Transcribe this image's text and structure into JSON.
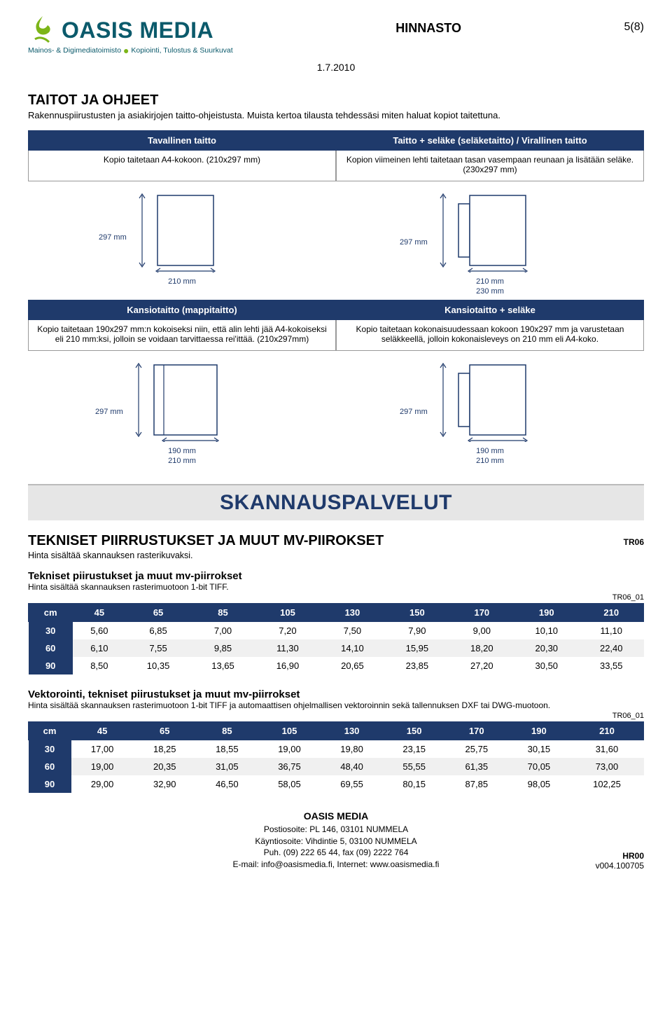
{
  "header": {
    "logo_name": "OASIS MEDIA",
    "logo_tagline": "Mainos- & Digimediatoimisto Kopiointi, Tulostus & Suurkuvat",
    "logo_name_color": "#0b5a6b",
    "logo_icon_color": "#7cb518",
    "title": "HINNASTO",
    "page": "5(8)",
    "date": "1.7.2010"
  },
  "taitot": {
    "title": "TAITOT JA OHJEET",
    "subtitle": "Rakennuspiirustusten ja asiakirjojen taitto-ohjeistusta. Muista kertoa tilausta tehdessäsi miten haluat kopiot taitettuna.",
    "row1": {
      "left": {
        "hdr": "Tavallinen taitto",
        "desc": "Kopio taitetaan A4-kokoon. (210x297 mm)",
        "v": "297 mm",
        "h1": "210 mm"
      },
      "right": {
        "hdr": "Taitto + seläke (seläketaitto) / Virallinen taitto",
        "desc": "Kopion viimeinen lehti taitetaan tasan vasempaan reunaan ja lisätään seläke. (230x297 mm)",
        "v": "297 mm",
        "h1": "210 mm",
        "h2": "230 mm"
      }
    },
    "row2": {
      "left": {
        "hdr": "Kansiotaitto (mappitaitto)",
        "desc": "Kopio taitetaan 190x297 mm:n kokoiseksi niin, että alin lehti jää A4-kokoiseksi eli 210 mm:ksi, jolloin se voidaan tarvittaessa rei'ittää. (210x297mm)",
        "v": "297 mm",
        "h1": "190 mm",
        "h2": "210 mm"
      },
      "right": {
        "hdr": "Kansiotaitto + seläke",
        "desc": "Kopio taitetaan kokonaisuudessaan kokoon 190x297 mm ja varustetaan seläkkeellä, jolloin kokonaisleveys on 210 mm eli A4-koko.",
        "v": "297 mm",
        "h1": "190 mm",
        "h2": "210 mm"
      }
    },
    "colors": {
      "navy": "#1f3a6b",
      "grey_bg": "#e6e6e6"
    }
  },
  "scan": {
    "banner": "SKANNAUSPALVELUT",
    "section": {
      "title": "TEKNISET PIIRRUSTUKSET JA MUUT MV-PIIROKSET",
      "note": "Hinta sisältää skannauksen rasterikuvaksi.",
      "code": "TR06"
    },
    "table1": {
      "title": "Tekniset piirustukset ja muut mv-piirrokset",
      "sub": "Hinta sisältää skannauksen rasterimuotoon 1-bit TIFF.",
      "code": "TR06_01",
      "cols": [
        "cm",
        "45",
        "65",
        "85",
        "105",
        "130",
        "150",
        "170",
        "190",
        "210"
      ],
      "rows": [
        [
          "30",
          "5,60",
          "6,85",
          "7,00",
          "7,20",
          "7,50",
          "7,90",
          "9,00",
          "10,10",
          "11,10"
        ],
        [
          "60",
          "6,10",
          "7,55",
          "9,85",
          "11,30",
          "14,10",
          "15,95",
          "18,20",
          "20,30",
          "22,40"
        ],
        [
          "90",
          "8,50",
          "10,35",
          "13,65",
          "16,90",
          "20,65",
          "23,85",
          "27,20",
          "30,50",
          "33,55"
        ]
      ]
    },
    "table2": {
      "title": "Vektorointi, tekniset piirustukset ja muut mv-piirrokset",
      "sub": "Hinta sisältää skannauksen rasterimuotoon 1-bit TIFF ja automaattisen ohjelmallisen vektoroinnin sekä tallennuksen DXF tai DWG-muotoon.",
      "code": "TR06_01",
      "cols": [
        "cm",
        "45",
        "65",
        "85",
        "105",
        "130",
        "150",
        "170",
        "190",
        "210"
      ],
      "rows": [
        [
          "30",
          "17,00",
          "18,25",
          "18,55",
          "19,00",
          "19,80",
          "23,15",
          "25,75",
          "30,15",
          "31,60"
        ],
        [
          "60",
          "19,00",
          "20,35",
          "31,05",
          "36,75",
          "48,40",
          "55,55",
          "61,35",
          "70,05",
          "73,00"
        ],
        [
          "90",
          "29,00",
          "32,90",
          "46,50",
          "58,05",
          "69,55",
          "80,15",
          "87,85",
          "98,05",
          "102,25"
        ]
      ]
    }
  },
  "footer": {
    "name": "OASIS MEDIA",
    "l1": "Postiosoite: PL 146, 03101 NUMMELA",
    "l2": "Käyntiosoite: Vihdintie 5, 03100 NUMMELA",
    "l3": "Puh. (09) 222 65 44, fax (09) 2222 764",
    "l4": "E-mail: info@oasismedia.fi, Internet: www.oasismedia.fi",
    "doc_code": "HR00",
    "version": "v004.100705"
  }
}
